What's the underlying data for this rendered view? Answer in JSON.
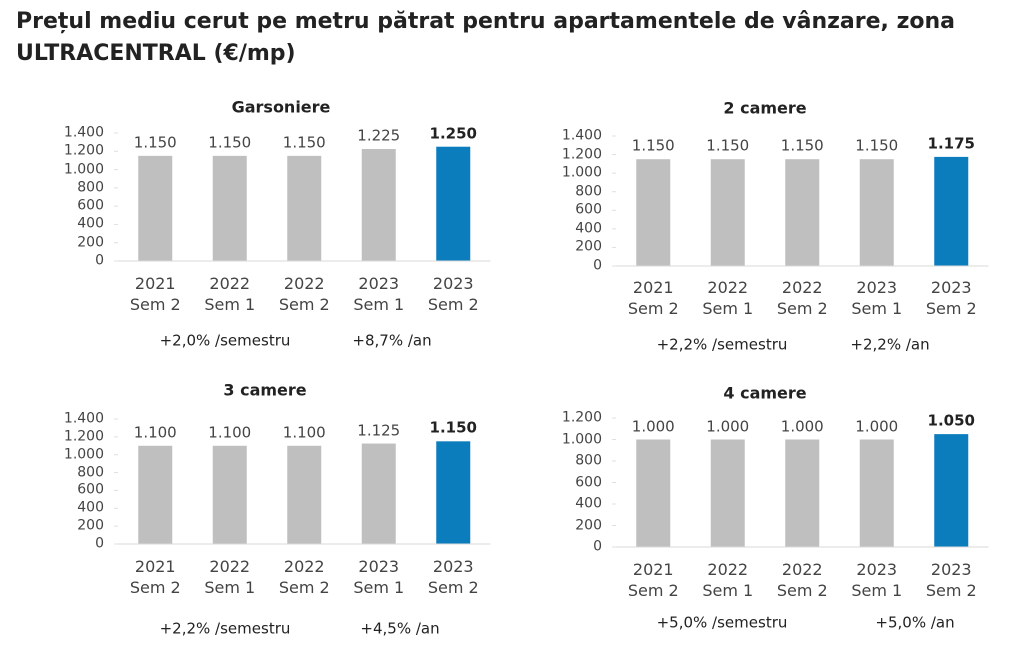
{
  "title": "Prețul mediu cerut pe metru pătrat pentru apartamentele de vânzare, zona ULTRACENTRAL (€/mp)",
  "chart_data": [
    {
      "type": "bar",
      "title": "Garsoniere",
      "categories": [
        "2021\nSem 2",
        "2022\nSem 1",
        "2022\nSem 2",
        "2023\nSem 1",
        "2023\nSem 2"
      ],
      "values": [
        1150,
        1150,
        1150,
        1225,
        1250
      ],
      "value_labels": [
        "1.150",
        "1.150",
        "1.150",
        "1.225",
        "1.250"
      ],
      "colors": [
        "#bfbfbf",
        "#bfbfbf",
        "#bfbfbf",
        "#bfbfbf",
        "#0b7dbd"
      ],
      "ylim": [
        0,
        1400
      ],
      "yticks": [
        0,
        200,
        400,
        600,
        800,
        {
          "value": 1000,
          "label": "1.000"
        },
        {
          "value": 1200,
          "label": "1.200"
        },
        {
          "value": 1400,
          "label": "1.400"
        }
      ],
      "annotations": [
        "+2,0% /semestru",
        "+8,7% /an"
      ]
    },
    {
      "type": "bar",
      "title": "2 camere",
      "categories": [
        "2021\nSem 2",
        "2022\nSem 1",
        "2022\nSem 2",
        "2023\nSem 1",
        "2023\nSem 2"
      ],
      "values": [
        1150,
        1150,
        1150,
        1150,
        1175
      ],
      "value_labels": [
        "1.150",
        "1.150",
        "1.150",
        "1.150",
        "1.175"
      ],
      "colors": [
        "#bfbfbf",
        "#bfbfbf",
        "#bfbfbf",
        "#bfbfbf",
        "#0b7dbd"
      ],
      "ylim": [
        0,
        1400
      ],
      "yticks": [
        0,
        200,
        400,
        600,
        800,
        {
          "value": 1000,
          "label": "1.000"
        },
        {
          "value": 1200,
          "label": "1.200"
        },
        {
          "value": 1400,
          "label": "1.400"
        }
      ],
      "annotations": [
        "+2,2% /semestru",
        "+2,2% /an"
      ]
    },
    {
      "type": "bar",
      "title": "3 camere",
      "categories": [
        "2021\nSem 2",
        "2022\nSem 1",
        "2022\nSem 2",
        "2023\nSem 1",
        "2023\nSem 2"
      ],
      "values": [
        1100,
        1100,
        1100,
        1125,
        1150
      ],
      "value_labels": [
        "1.100",
        "1.100",
        "1.100",
        "1.125",
        "1.150"
      ],
      "colors": [
        "#bfbfbf",
        "#bfbfbf",
        "#bfbfbf",
        "#bfbfbf",
        "#0b7dbd"
      ],
      "ylim": [
        0,
        1400
      ],
      "yticks": [
        0,
        200,
        400,
        600,
        800,
        {
          "value": 1000,
          "label": "1.000"
        },
        {
          "value": 1200,
          "label": "1.200"
        },
        {
          "value": 1400,
          "label": "1.400"
        }
      ],
      "annotations": [
        "+2,2% /semestru",
        "+4,5% /an"
      ]
    },
    {
      "type": "bar",
      "title": "4 camere",
      "categories": [
        "2021\nSem 2",
        "2022\nSem 1",
        "2022\nSem 2",
        "2023\nSem 1",
        "2023\nSem 2"
      ],
      "values": [
        1000,
        1000,
        1000,
        1000,
        1050
      ],
      "value_labels": [
        "1.000",
        "1.000",
        "1.000",
        "1.000",
        "1.050"
      ],
      "colors": [
        "#bfbfbf",
        "#bfbfbf",
        "#bfbfbf",
        "#bfbfbf",
        "#0b7dbd"
      ],
      "ylim": [
        0,
        1200
      ],
      "yticks": [
        0,
        200,
        400,
        600,
        800,
        {
          "value": 1000,
          "label": "1.000"
        },
        {
          "value": 1200,
          "label": "1.200"
        }
      ],
      "annotations": [
        "+5,0% /semestru",
        "+5,0% /an"
      ]
    }
  ]
}
